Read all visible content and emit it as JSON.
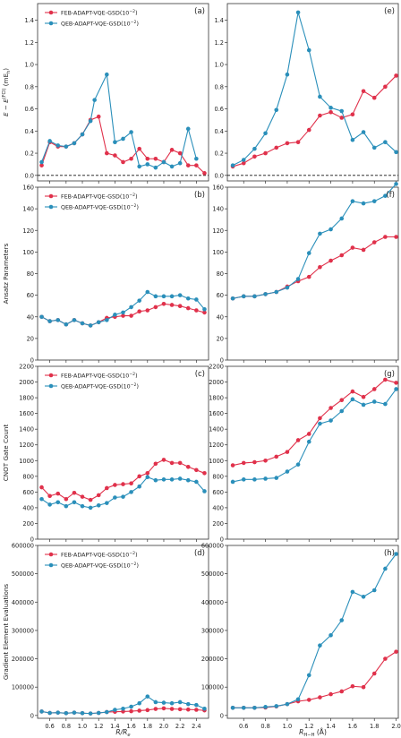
{
  "colors": {
    "feb": "#e0314b",
    "qeb": "#2a8fba"
  },
  "legend": {
    "feb": "FEB-ADAPT-VQE-GSD(10",
    "qeb": "QEB-ADAPT-VQE-GSD(10",
    "exp": "−2",
    "close": ")"
  },
  "xlabels": {
    "left": "R/R",
    "left_sub": "e",
    "right": "R",
    "right_sub": "H−H",
    "right_unit": " (Å)"
  },
  "xticks_left": [
    "0.6",
    "0.8",
    "1.0",
    "1.2",
    "1.4",
    "1.6",
    "1.8",
    "2.0",
    "2.2",
    "2.4"
  ],
  "xticks_right": [
    "0.6",
    "0.8",
    "1.0",
    "1.2",
    "1.4",
    "1.6",
    "1.8",
    "2.0"
  ],
  "rows": [
    {
      "ylabel": "E − E(FCI) (mEh)",
      "ylabel_parts": [
        "E − E",
        "(FCI)",
        " (mE",
        "h",
        ")"
      ],
      "yticks": [
        "0.0",
        "0.2",
        "0.4",
        "0.6",
        "0.8",
        "1.0",
        "1.2",
        "1.4"
      ],
      "panels": [
        "(a)",
        "(e)"
      ]
    },
    {
      "ylabel": "Ansatz Parameters",
      "yticks": [
        "0",
        "20",
        "40",
        "60",
        "80",
        "100",
        "120",
        "140",
        "160"
      ],
      "panels": [
        "(b)",
        "(f)"
      ]
    },
    {
      "ylabel": "CNOT Gate Count",
      "yticks": [
        "0",
        "200",
        "400",
        "600",
        "800",
        "1000",
        "1200",
        "1400",
        "1600",
        "1800",
        "2000",
        "2200"
      ],
      "panels": [
        "(c)",
        "(g)"
      ]
    },
    {
      "ylabel": "Gradient Element Evaluations",
      "yticks": [
        "0",
        "100000",
        "200000",
        "300000",
        "400000",
        "500000",
        "600000"
      ],
      "panels": [
        "(d)",
        "(h)"
      ]
    }
  ],
  "chart_data": [
    {
      "panel": "(a)",
      "type": "line",
      "xlabel": "R/Re",
      "ylabel": "E − E(FCI) (mEh)",
      "xlim": [
        0.45,
        2.55
      ],
      "ylim": [
        -0.05,
        1.55
      ],
      "reference_line": 0.0,
      "x": [
        0.5,
        0.6,
        0.7,
        0.8,
        0.9,
        1.0,
        1.1,
        1.15,
        1.2,
        1.3,
        1.4,
        1.5,
        1.6,
        1.7,
        1.8,
        1.9,
        2.0,
        2.1,
        2.2,
        2.3,
        2.4,
        2.5
      ],
      "series": [
        {
          "name": "FEB-ADAPT-VQE-GSD(10−2)",
          "values": [
            0.09,
            0.3,
            0.26,
            0.26,
            0.29,
            0.37,
            0.5,
            null,
            0.53,
            0.2,
            0.18,
            0.12,
            0.15,
            0.24,
            0.15,
            0.15,
            0.12,
            0.23,
            0.2,
            0.09,
            0.09,
            0.02
          ]
        },
        {
          "name": "QEB-ADAPT-VQE-GSD(10−2)",
          "values": [
            0.12,
            0.31,
            0.27,
            0.26,
            0.29,
            0.37,
            0.49,
            0.68,
            null,
            0.91,
            0.3,
            0.33,
            0.39,
            0.08,
            0.1,
            0.07,
            0.12,
            0.08,
            0.11,
            0.42,
            0.15,
            null
          ]
        }
      ]
    },
    {
      "panel": "(b)",
      "type": "line",
      "xlabel": "R/Re",
      "ylabel": "Ansatz Parameters",
      "xlim": [
        0.45,
        2.55
      ],
      "ylim": [
        0,
        160
      ],
      "x": [
        0.5,
        0.6,
        0.7,
        0.8,
        0.9,
        1.0,
        1.1,
        1.2,
        1.3,
        1.4,
        1.5,
        1.6,
        1.7,
        1.8,
        1.9,
        2.0,
        2.1,
        2.2,
        2.3,
        2.4,
        2.5
      ],
      "series": [
        {
          "name": "FEB-ADAPT-VQE-GSD(10−2)",
          "values": [
            40,
            36,
            37,
            33,
            37,
            34,
            32,
            35,
            39,
            40,
            41,
            41,
            45,
            46,
            49,
            52,
            51,
            50,
            48,
            46,
            44
          ]
        },
        {
          "name": "QEB-ADAPT-VQE-GSD(10−2)",
          "values": [
            40,
            36,
            37,
            33,
            37,
            34,
            32,
            35,
            37,
            42,
            44,
            49,
            55,
            63,
            59,
            59,
            59,
            60,
            57,
            56,
            47
          ]
        }
      ]
    },
    {
      "panel": "(c)",
      "type": "line",
      "xlabel": "R/Re",
      "ylabel": "CNOT Gate Count",
      "xlim": [
        0.45,
        2.55
      ],
      "ylim": [
        0,
        2200
      ],
      "x": [
        0.5,
        0.6,
        0.7,
        0.8,
        0.9,
        1.0,
        1.1,
        1.2,
        1.3,
        1.4,
        1.5,
        1.6,
        1.7,
        1.8,
        1.9,
        2.0,
        2.1,
        2.2,
        2.3,
        2.4,
        2.5
      ],
      "series": [
        {
          "name": "FEB-ADAPT-VQE-GSD(10−2)",
          "values": [
            660,
            550,
            580,
            510,
            590,
            540,
            500,
            560,
            650,
            690,
            700,
            710,
            800,
            840,
            960,
            1010,
            970,
            970,
            920,
            880,
            840
          ]
        },
        {
          "name": "QEB-ADAPT-VQE-GSD(10−2)",
          "values": [
            510,
            440,
            470,
            420,
            470,
            420,
            400,
            430,
            460,
            530,
            540,
            600,
            670,
            790,
            750,
            760,
            760,
            770,
            750,
            730,
            610
          ]
        }
      ]
    },
    {
      "panel": "(d)",
      "type": "line",
      "xlabel": "R/Re",
      "ylabel": "Gradient Element Evaluations",
      "xlim": [
        0.45,
        2.55
      ],
      "ylim": [
        -10000,
        600000
      ],
      "x": [
        0.5,
        0.6,
        0.7,
        0.8,
        0.9,
        1.0,
        1.1,
        1.2,
        1.3,
        1.4,
        1.5,
        1.6,
        1.7,
        1.8,
        1.9,
        2.0,
        2.1,
        2.2,
        2.3,
        2.4,
        2.5
      ],
      "series": [
        {
          "name": "FEB-ADAPT-VQE-GSD(10−2)",
          "values": [
            14000,
            9000,
            10000,
            8000,
            10000,
            8000,
            7000,
            9000,
            12000,
            13000,
            14000,
            15000,
            17000,
            19000,
            23000,
            25000,
            23000,
            22000,
            21000,
            20000,
            18000
          ]
        },
        {
          "name": "QEB-ADAPT-VQE-GSD(10−2)",
          "values": [
            14000,
            9000,
            10000,
            8000,
            10000,
            8000,
            7000,
            9000,
            12000,
            20000,
            24000,
            31000,
            43000,
            67000,
            47000,
            45000,
            43000,
            47000,
            40000,
            37000,
            24000
          ]
        }
      ]
    },
    {
      "panel": "(e)",
      "type": "line",
      "xlabel": "R H−H (Å)",
      "ylabel": "E − E(FCI) (mEh)",
      "xlim": [
        0.45,
        2.02
      ],
      "ylim": [
        -0.05,
        1.55
      ],
      "reference_line": 0.0,
      "x": [
        0.5,
        0.6,
        0.7,
        0.8,
        0.9,
        1.0,
        1.1,
        1.2,
        1.3,
        1.4,
        1.5,
        1.6,
        1.7,
        1.8,
        1.9,
        2.0
      ],
      "series": [
        {
          "name": "FEB-ADAPT-VQE-GSD(10−2)",
          "values": [
            0.08,
            0.11,
            0.17,
            0.2,
            0.25,
            0.29,
            0.3,
            0.41,
            0.54,
            0.57,
            0.52,
            0.55,
            0.76,
            0.7,
            0.8,
            0.9
          ]
        },
        {
          "name": "QEB-ADAPT-VQE-GSD(10−2)",
          "values": [
            0.09,
            0.14,
            0.24,
            0.38,
            0.59,
            0.91,
            1.47,
            1.13,
            0.71,
            0.61,
            0.58,
            0.32,
            0.39,
            0.25,
            0.3,
            0.21
          ]
        }
      ]
    },
    {
      "panel": "(f)",
      "type": "line",
      "xlabel": "R H−H (Å)",
      "ylabel": "Ansatz Parameters",
      "xlim": [
        0.45,
        2.02
      ],
      "ylim": [
        0,
        160
      ],
      "x": [
        0.5,
        0.6,
        0.7,
        0.8,
        0.9,
        1.0,
        1.1,
        1.2,
        1.3,
        1.4,
        1.5,
        1.6,
        1.7,
        1.8,
        1.9,
        2.0
      ],
      "series": [
        {
          "name": "FEB-ADAPT-VQE-GSD(10−2)",
          "values": [
            57,
            59,
            59,
            61,
            63,
            68,
            73,
            77,
            86,
            92,
            97,
            104,
            102,
            109,
            114,
            114
          ]
        },
        {
          "name": "QEB-ADAPT-VQE-GSD(10−2)",
          "values": [
            57,
            59,
            59,
            61,
            63,
            67,
            75,
            99,
            117,
            121,
            131,
            147,
            145,
            147,
            152,
            163
          ]
        }
      ]
    },
    {
      "panel": "(g)",
      "type": "line",
      "xlabel": "R H−H (Å)",
      "ylabel": "CNOT Gate Count",
      "xlim": [
        0.45,
        2.02
      ],
      "ylim": [
        0,
        2200
      ],
      "x": [
        0.5,
        0.6,
        0.7,
        0.8,
        0.9,
        1.0,
        1.1,
        1.2,
        1.3,
        1.4,
        1.5,
        1.6,
        1.7,
        1.8,
        1.9,
        2.0
      ],
      "series": [
        {
          "name": "FEB-ADAPT-VQE-GSD(10−2)",
          "values": [
            940,
            970,
            980,
            1000,
            1050,
            1110,
            1260,
            1340,
            1540,
            1670,
            1770,
            1880,
            1810,
            1910,
            2030,
            1990
          ]
        },
        {
          "name": "QEB-ADAPT-VQE-GSD(10−2)",
          "values": [
            730,
            760,
            760,
            770,
            780,
            860,
            950,
            1240,
            1470,
            1510,
            1630,
            1780,
            1710,
            1750,
            1720,
            1910
          ]
        }
      ]
    },
    {
      "panel": "(h)",
      "type": "line",
      "xlabel": "R H−H (Å)",
      "ylabel": "Gradient Element Evaluations",
      "xlim": [
        0.45,
        2.02
      ],
      "ylim": [
        -10000,
        600000
      ],
      "x": [
        0.5,
        0.6,
        0.7,
        0.8,
        0.9,
        1.0,
        1.1,
        1.2,
        1.3,
        1.4,
        1.5,
        1.6,
        1.7,
        1.8,
        1.9,
        2.0
      ],
      "series": [
        {
          "name": "FEB-ADAPT-VQE-GSD(10−2)",
          "values": [
            27000,
            27000,
            27000,
            28000,
            32000,
            40000,
            50000,
            55000,
            64000,
            75000,
            85000,
            103000,
            100000,
            148000,
            200000,
            225000
          ]
        },
        {
          "name": "QEB-ADAPT-VQE-GSD(10−2)",
          "values": [
            27000,
            27000,
            27000,
            30000,
            33000,
            40000,
            57000,
            142000,
            247000,
            283000,
            336000,
            436000,
            419000,
            442000,
            518000,
            570000
          ]
        }
      ]
    }
  ]
}
